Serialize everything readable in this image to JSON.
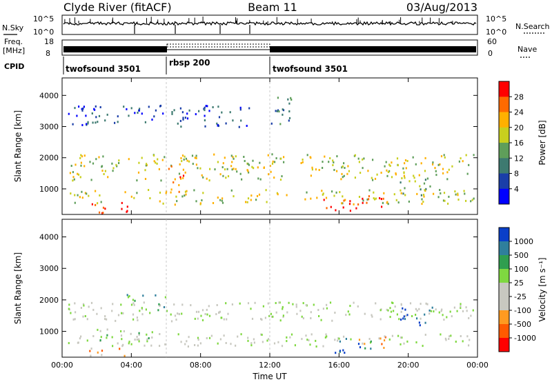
{
  "header": {
    "station": "Clyde River (fitACF)",
    "beam": "Beam 11",
    "date": "03/Aug/2013"
  },
  "status_panels": {
    "nsky": {
      "label": "N.Sky",
      "left_ticks": [
        "10^5",
        "10^0"
      ]
    },
    "nsearch": {
      "label": "N.Search",
      "right_ticks": [
        "10^5",
        "10^0"
      ]
    },
    "freq": {
      "label": "Freq.",
      "unit": "[MHz]",
      "left_ticks": [
        "18",
        "8"
      ]
    },
    "nave": {
      "label": "Nave",
      "right_ticks": [
        "60",
        "0"
      ]
    },
    "cpid": {
      "label": "CPID",
      "segments": [
        {
          "name": "twofsound 3501",
          "start_hour": 0,
          "end_hour": 6
        },
        {
          "name": "rbsp 200",
          "start_hour": 6,
          "end_hour": 12
        },
        {
          "name": "twofsound 3501",
          "start_hour": 12,
          "end_hour": 24
        }
      ]
    }
  },
  "chart_data": [
    {
      "type": "heatmap",
      "panel": "power",
      "ylabel": "Slant Range [km]",
      "x_ticks": [
        "00:00",
        "04:00",
        "08:00",
        "12:00",
        "16:00",
        "20:00",
        "00:00"
      ],
      "xlim_hours": [
        0,
        24
      ],
      "y_ticks": [
        1000,
        2000,
        3000,
        4000
      ],
      "ylim": [
        180,
        4560
      ],
      "colorbar": {
        "label": "Power [dB]",
        "ticks": [
          28,
          24,
          20,
          16,
          12,
          8,
          4
        ],
        "colors": [
          "#ff0000",
          "#ff6a00",
          "#ffb000",
          "#c8cf1e",
          "#5f9e5a",
          "#3d7a70",
          "#1a3ea8",
          "#0000ff"
        ]
      },
      "bands": [
        {
          "start_hour": 0.3,
          "end_hour": 24,
          "range_lo": 1300,
          "range_hi": 2150,
          "level": 3
        },
        {
          "start_hour": 0.3,
          "end_hour": 24,
          "range_lo": 520,
          "range_hi": 1000,
          "level": 3
        },
        {
          "start_hour": 1.3,
          "end_hour": 4.2,
          "range_lo": 250,
          "range_hi": 650,
          "level": 0
        },
        {
          "start_hour": 6.0,
          "end_hour": 7.0,
          "range_lo": 900,
          "range_hi": 1800,
          "level": 1
        },
        {
          "start_hour": 15.0,
          "end_hour": 17.2,
          "range_lo": 320,
          "range_hi": 700,
          "level": 0
        },
        {
          "start_hour": 17.3,
          "end_hour": 18.6,
          "range_lo": 450,
          "range_hi": 900,
          "level": 0
        },
        {
          "start_hour": 12.0,
          "end_hour": 13.3,
          "range_lo": 3000,
          "range_hi": 4100,
          "level": 5
        },
        {
          "start_hour": 0.2,
          "end_hour": 10.8,
          "range_lo": 3000,
          "range_hi": 3700,
          "level": 6
        },
        {
          "start_hour": 19.5,
          "end_hour": 21.5,
          "range_lo": 800,
          "range_hi": 1400,
          "level": 4
        }
      ]
    },
    {
      "type": "heatmap",
      "panel": "velocity",
      "xlabel": "Time UT",
      "ylabel": "Slant Range [km]",
      "x_ticks": [
        "00:00",
        "04:00",
        "08:00",
        "12:00",
        "16:00",
        "20:00",
        "00:00"
      ],
      "xlim_hours": [
        0,
        24
      ],
      "y_ticks": [
        1000,
        2000,
        3000,
        4000
      ],
      "ylim": [
        180,
        4560
      ],
      "colorbar": {
        "label": "Velocity [m s⁻¹]",
        "ticks": [
          1000,
          500,
          100,
          25,
          -25,
          -100,
          -500,
          -1000
        ],
        "colors": [
          "#0a3fc8",
          "#2f7f9c",
          "#2f9e4f",
          "#7fd840",
          "#c8c8c0",
          "#c8c8c0",
          "#ff9a20",
          "#ff5a00",
          "#ff0000"
        ]
      },
      "bands": [
        {
          "start_hour": 0.3,
          "end_hour": 24,
          "range_lo": 1350,
          "range_hi": 1950,
          "level": 4
        },
        {
          "start_hour": 0.3,
          "end_hour": 24,
          "range_lo": 550,
          "range_hi": 950,
          "level": 4
        },
        {
          "start_hour": 3.5,
          "end_hour": 6.0,
          "range_lo": 1700,
          "range_hi": 2200,
          "level": 2
        },
        {
          "start_hour": 2.0,
          "end_hour": 5.5,
          "range_lo": 700,
          "range_hi": 1100,
          "level": 3
        },
        {
          "start_hour": 19.5,
          "end_hour": 21.6,
          "range_lo": 1150,
          "range_hi": 1850,
          "level": 0
        },
        {
          "start_hour": 15.5,
          "end_hour": 18.0,
          "range_lo": 350,
          "range_hi": 800,
          "level": 1
        },
        {
          "start_hour": 1.5,
          "end_hour": 4.0,
          "range_lo": 250,
          "range_hi": 500,
          "level": 6
        },
        {
          "start_hour": 17.0,
          "end_hour": 19.0,
          "range_lo": 500,
          "range_hi": 900,
          "level": 6
        }
      ]
    }
  ]
}
